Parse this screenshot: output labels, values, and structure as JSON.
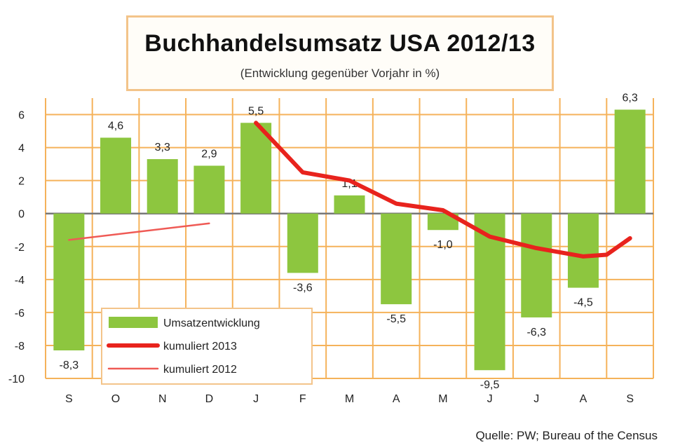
{
  "chart_data": {
    "type": "bar",
    "title": "Buchhandelsumsatz USA 2012/13",
    "subtitle": "(Entwicklung gegenüber Vorjahr in %)",
    "source": "Quelle: PW; Bureau of the Census",
    "categories": [
      "S",
      "O",
      "N",
      "D",
      "J",
      "F",
      "M",
      "A",
      "M",
      "J",
      "J",
      "A",
      "S"
    ],
    "ylim": [
      -10,
      7
    ],
    "yticks": [
      -10,
      -8,
      -6,
      -4,
      -2,
      0,
      2,
      4,
      6
    ],
    "series": [
      {
        "name": "Umsatzentwicklung",
        "kind": "bar",
        "color": "#8dc63f",
        "values": [
          -8.3,
          4.6,
          3.3,
          2.9,
          5.5,
          -3.6,
          1.1,
          -5.5,
          -1.0,
          -9.5,
          -6.3,
          -4.5,
          6.3
        ],
        "labels": [
          "-8,3",
          "4,6",
          "3,3",
          "2,9",
          "5,5",
          "-3,6",
          "1,1",
          "-5,5",
          "-1,0",
          "-9,5",
          "-6,3",
          "-4,5",
          "6,3"
        ]
      },
      {
        "name": "kumuliert 2013",
        "kind": "line",
        "color": "#e8231d",
        "x": [
          4,
          5,
          5.6,
          6,
          7,
          8,
          9,
          10,
          11,
          11.5,
          12
        ],
        "values": [
          5.5,
          2.5,
          2.2,
          2.0,
          0.6,
          0.2,
          -1.4,
          -2.1,
          -2.6,
          -2.5,
          -1.5
        ]
      },
      {
        "name": "kumuliert 2012",
        "kind": "line",
        "color": "#ef5a55",
        "x": [
          0,
          3
        ],
        "values": [
          -1.6,
          -0.6
        ]
      }
    ],
    "legend": [
      "Umsatzentwicklung",
      "kumuliert 2013",
      "kumuliert 2012"
    ],
    "legend_position": "bottom-left",
    "grid": true
  },
  "colors": {
    "grid": "#f5b25a",
    "bar": "#8dc63f",
    "line2013": "#e8231d",
    "line2012": "#ef5a55",
    "frame": "#f3c48a"
  }
}
